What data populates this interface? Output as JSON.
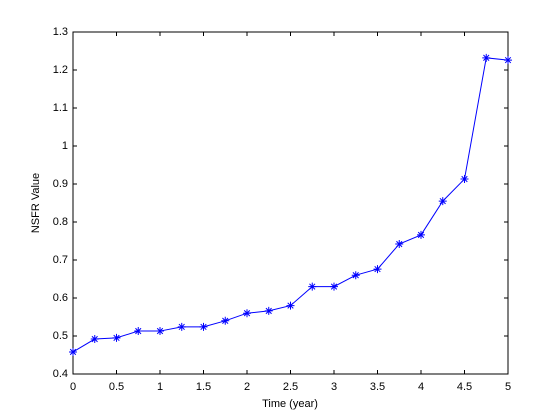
{
  "chart_data": {
    "type": "line",
    "x_label": "Time (year)",
    "y_label": "NSFR Value",
    "x": [
      0,
      0.25,
      0.5,
      0.75,
      1,
      1.25,
      1.5,
      1.75,
      2,
      2.25,
      2.5,
      2.75,
      3,
      3.25,
      3.5,
      3.75,
      4,
      4.25,
      4.5,
      4.75,
      5
    ],
    "series": [
      {
        "color": "#0000ff",
        "marker": "asterisk",
        "values": [
          0.458,
          0.492,
          0.495,
          0.513,
          0.513,
          0.524,
          0.524,
          0.54,
          0.56,
          0.566,
          0.58,
          0.63,
          0.63,
          0.66,
          0.676,
          0.742,
          0.766,
          0.855,
          0.913,
          1.232,
          1.226
        ]
      }
    ],
    "xlim": [
      0,
      5
    ],
    "xticks": [
      0,
      0.5,
      1,
      1.5,
      2,
      2.5,
      3,
      3.5,
      4,
      4.5,
      5
    ],
    "ylim": [
      0.4,
      1.3
    ],
    "yticks": [
      0.4,
      0.5,
      0.6,
      0.7,
      0.8,
      0.9,
      1,
      1.1,
      1.2,
      1.3
    ],
    "grid": false
  }
}
